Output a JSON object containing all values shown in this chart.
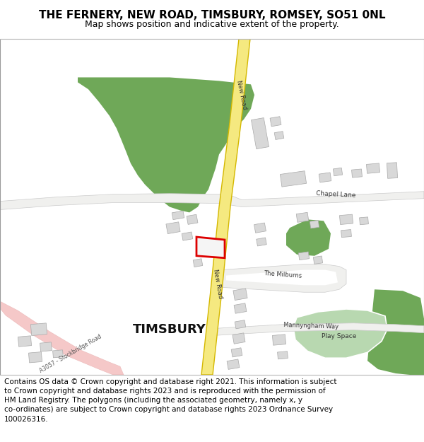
{
  "title": "THE FERNERY, NEW ROAD, TIMSBURY, ROMSEY, SO51 0NL",
  "subtitle": "Map shows position and indicative extent of the property.",
  "footer": "Contains OS data © Crown copyright and database right 2021. This information is subject to Crown copyright and database rights 2023 and is reproduced with the permission of HM Land Registry. The polygons (including the associated geometry, namely x, y co-ordinates) are subject to Crown copyright and database rights 2023 Ordnance Survey 100026316.",
  "map_bg": "#ffffff",
  "road_yellow_fill": "#f5e980",
  "road_yellow_edge": "#d4b800",
  "road_white_fill": "#f0f0ee",
  "road_white_edge": "#cccccc",
  "green_color": "#6fa858",
  "green_edge": "none",
  "pink_color": "#f5c8c8",
  "pink_edge": "#e8b0b0",
  "building_color": "#d8d8d8",
  "building_edge": "#aaaaaa",
  "highlight_color": "#dd0000",
  "play_green": "#b8d8b0",
  "play_green_edge": "#ffffff",
  "title_fontsize": 11,
  "subtitle_fontsize": 9,
  "footer_fontsize": 7.5,
  "label_color": "#333333",
  "timsbury_fontsize": 13
}
